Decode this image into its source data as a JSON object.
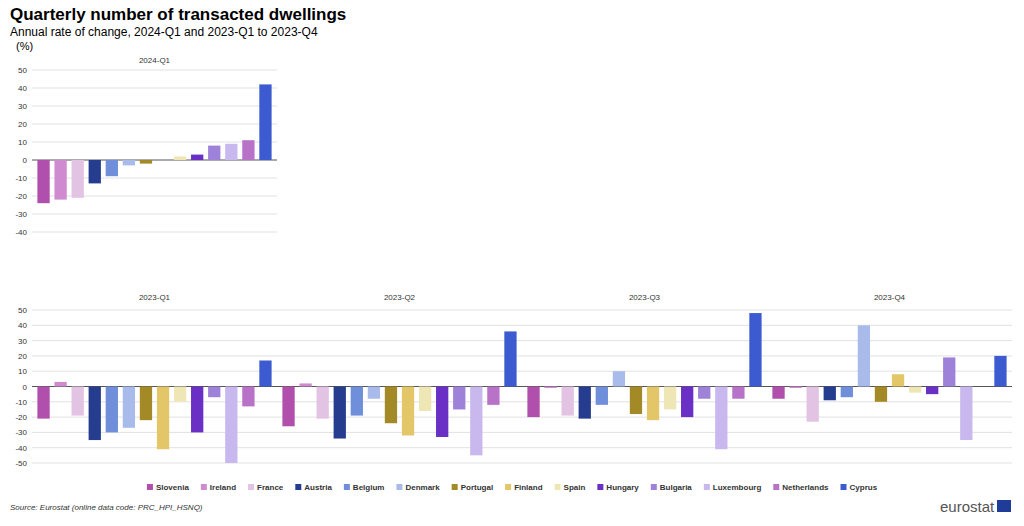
{
  "header": {
    "title": "Quarterly number of transacted dwellings",
    "subtitle": "Annual rate of change, 2024-Q1 and 2023-Q1 to 2023-Q4",
    "unit": "(%)"
  },
  "footer": {
    "source": "Source: Eurostat (online data code: PRC_HPI_HSNQ)",
    "logo": "eurostat"
  },
  "chart_data": [
    {
      "type": "bar",
      "title": "2024-Q1",
      "categories": [
        "Slovenia",
        "Ireland",
        "France",
        "Austria",
        "Belgium",
        "Denmark",
        "Portugal",
        "Finland",
        "Spain",
        "Hungary",
        "Bulgaria",
        "Luxembourg",
        "Netherlands",
        "Cyprus"
      ],
      "values": [
        -24,
        -22,
        -21,
        -13,
        -9,
        -3,
        -2,
        null,
        2,
        3,
        8,
        9,
        11,
        42
      ],
      "colors": [
        "#b04fac",
        "#d08bd0",
        "#e3c3e3",
        "#263d8f",
        "#6f8fdb",
        "#a9bbea",
        "#a38a26",
        "#e2c667",
        "#efe6b5",
        "#6a2fc4",
        "#9e81d9",
        "#c9b8ee",
        "#b873c9",
        "#3d5bd0"
      ],
      "ylim": [
        -40,
        50
      ],
      "yticks": [
        -40,
        -30,
        -20,
        -10,
        0,
        10,
        20,
        30,
        40,
        50
      ],
      "grid": true,
      "tick_labels": "y"
    },
    {
      "type": "bar",
      "title": "2023-Q1",
      "categories": [
        "Slovenia",
        "Ireland",
        "France",
        "Austria",
        "Belgium",
        "Denmark",
        "Portugal",
        "Finland",
        "Spain",
        "Hungary",
        "Bulgaria",
        "Luxembourg",
        "Netherlands",
        "Cyprus"
      ],
      "values": [
        -21,
        3,
        -19,
        -35,
        -30,
        -27,
        -22,
        -41,
        -10,
        -30,
        -7,
        -50,
        -13,
        17
      ],
      "colors": [
        "#b04fac",
        "#d08bd0",
        "#e3c3e3",
        "#263d8f",
        "#6f8fdb",
        "#a9bbea",
        "#a38a26",
        "#e2c667",
        "#efe6b5",
        "#6a2fc4",
        "#9e81d9",
        "#c9b8ee",
        "#b873c9",
        "#3d5bd0"
      ],
      "ylim": [
        -50,
        50
      ],
      "yticks": [
        -50,
        -40,
        -30,
        -20,
        -10,
        0,
        10,
        20,
        30,
        40,
        50
      ],
      "grid": true,
      "tick_labels": "y",
      "legend": "bottom"
    },
    {
      "type": "bar",
      "title": "2023-Q2",
      "categories": [
        "Slovenia",
        "Ireland",
        "France",
        "Austria",
        "Belgium",
        "Denmark",
        "Portugal",
        "Finland",
        "Spain",
        "Hungary",
        "Bulgaria",
        "Luxembourg",
        "Netherlands",
        "Cyprus"
      ],
      "values": [
        -26,
        2,
        -21,
        -34,
        -19,
        -8,
        -24,
        -32,
        -16,
        -33,
        -15,
        -45,
        -12,
        36
      ],
      "colors": [
        "#b04fac",
        "#d08bd0",
        "#e3c3e3",
        "#263d8f",
        "#6f8fdb",
        "#a9bbea",
        "#a38a26",
        "#e2c667",
        "#efe6b5",
        "#6a2fc4",
        "#9e81d9",
        "#c9b8ee",
        "#b873c9",
        "#3d5bd0"
      ],
      "ylim": [
        -50,
        50
      ],
      "yticks": [
        -50,
        -40,
        -30,
        -20,
        -10,
        0,
        10,
        20,
        30,
        40,
        50
      ],
      "grid": true,
      "tick_labels": false
    },
    {
      "type": "bar",
      "title": "2023-Q3",
      "categories": [
        "Slovenia",
        "Ireland",
        "France",
        "Austria",
        "Belgium",
        "Denmark",
        "Portugal",
        "Finland",
        "Spain",
        "Hungary",
        "Bulgaria",
        "Luxembourg",
        "Netherlands",
        "Cyprus"
      ],
      "values": [
        -20,
        -1,
        -19,
        -21,
        -12,
        10,
        -18,
        -22,
        -15,
        -20,
        -8,
        -41,
        -8,
        48
      ],
      "colors": [
        "#b04fac",
        "#d08bd0",
        "#e3c3e3",
        "#263d8f",
        "#6f8fdb",
        "#a9bbea",
        "#a38a26",
        "#e2c667",
        "#efe6b5",
        "#6a2fc4",
        "#9e81d9",
        "#c9b8ee",
        "#b873c9",
        "#3d5bd0"
      ],
      "ylim": [
        -50,
        50
      ],
      "yticks": [
        -50,
        -40,
        -30,
        -20,
        -10,
        0,
        10,
        20,
        30,
        40,
        50
      ],
      "grid": true,
      "tick_labels": false
    },
    {
      "type": "bar",
      "title": "2023-Q4",
      "categories": [
        "Slovenia",
        "Ireland",
        "France",
        "Austria",
        "Belgium",
        "Denmark",
        "Portugal",
        "Finland",
        "Spain",
        "Hungary",
        "Bulgaria",
        "Luxembourg",
        "Netherlands",
        "Cyprus"
      ],
      "values": [
        -8,
        -1,
        -23,
        -9,
        -7,
        40,
        -10,
        8,
        -4,
        -5,
        19,
        -35,
        null,
        20
      ],
      "colors": [
        "#b04fac",
        "#d08bd0",
        "#e3c3e3",
        "#263d8f",
        "#6f8fdb",
        "#a9bbea",
        "#a38a26",
        "#e2c667",
        "#efe6b5",
        "#6a2fc4",
        "#9e81d9",
        "#c9b8ee",
        "#b873c9",
        "#3d5bd0"
      ],
      "ylim": [
        -50,
        50
      ],
      "yticks": [
        -50,
        -40,
        -30,
        -20,
        -10,
        0,
        10,
        20,
        30,
        40,
        50
      ],
      "grid": true,
      "tick_labels": false
    }
  ]
}
